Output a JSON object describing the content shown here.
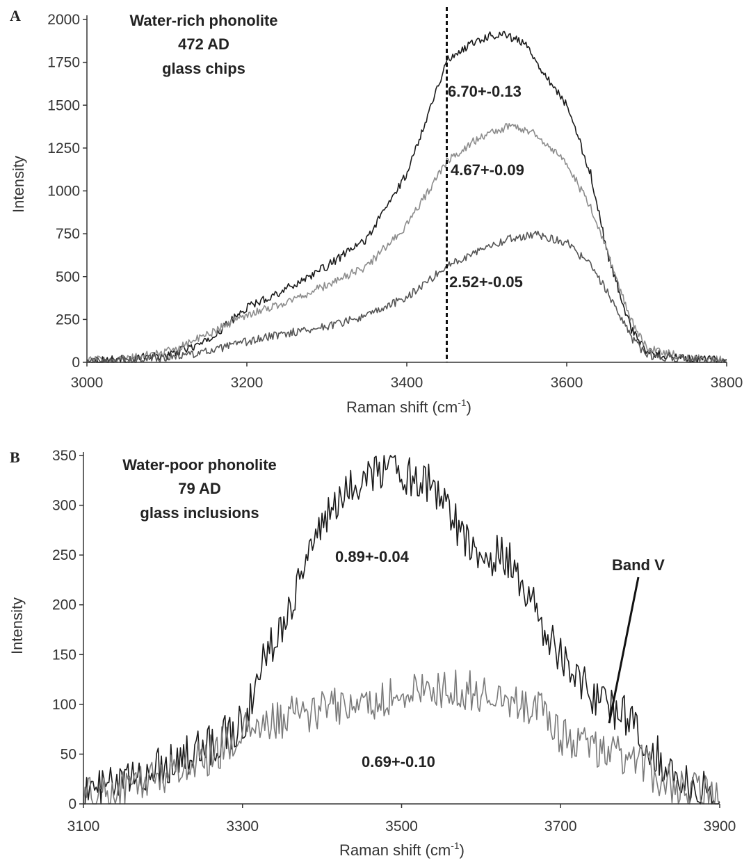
{
  "chart_data": [
    {
      "id": "A",
      "type": "line",
      "panel_label": "A",
      "xlabel": "Raman shift (cm",
      "xlabel_sup": "-1",
      "xlabel_end": ")",
      "ylabel": "Intensity",
      "xlim": [
        3000,
        3800
      ],
      "ylim": [
        0,
        2000
      ],
      "x_ticks": [
        3000,
        3200,
        3400,
        3600,
        3800
      ],
      "y_ticks": [
        0,
        250,
        500,
        750,
        1000,
        1250,
        1500,
        1750,
        2000
      ],
      "annotation_lines": [
        "Water-rich phonolite",
        "472 AD",
        "glass chips"
      ],
      "reference_line_x": 3450,
      "series": [
        {
          "label": "6.70+-0.13",
          "color": "#1a1a1a",
          "points": [
            [
              3000,
              10
            ],
            [
              3050,
              20
            ],
            [
              3100,
              40
            ],
            [
              3150,
              120
            ],
            [
              3200,
              320
            ],
            [
              3250,
              430
            ],
            [
              3300,
              560
            ],
            [
              3350,
              720
            ],
            [
              3400,
              1100
            ],
            [
              3450,
              1760
            ],
            [
              3480,
              1860
            ],
            [
              3500,
              1900
            ],
            [
              3520,
              1920
            ],
            [
              3550,
              1850
            ],
            [
              3570,
              1700
            ],
            [
              3600,
              1500
            ],
            [
              3630,
              1100
            ],
            [
              3650,
              650
            ],
            [
              3680,
              200
            ],
            [
              3700,
              60
            ],
            [
              3750,
              20
            ],
            [
              3800,
              10
            ]
          ]
        },
        {
          "label": "4.67+-0.09",
          "color": "#8c8c8c",
          "points": [
            [
              3000,
              10
            ],
            [
              3050,
              20
            ],
            [
              3100,
              60
            ],
            [
              3150,
              160
            ],
            [
              3200,
              280
            ],
            [
              3250,
              350
            ],
            [
              3300,
              450
            ],
            [
              3350,
              560
            ],
            [
              3400,
              800
            ],
            [
              3450,
              1170
            ],
            [
              3480,
              1280
            ],
            [
              3500,
              1330
            ],
            [
              3530,
              1380
            ],
            [
              3560,
              1340
            ],
            [
              3600,
              1160
            ],
            [
              3630,
              900
            ],
            [
              3650,
              650
            ],
            [
              3680,
              250
            ],
            [
              3700,
              80
            ],
            [
              3750,
              30
            ],
            [
              3800,
              10
            ]
          ]
        },
        {
          "label": "2.52+-0.05",
          "color": "#555555",
          "points": [
            [
              3000,
              5
            ],
            [
              3050,
              10
            ],
            [
              3100,
              30
            ],
            [
              3150,
              60
            ],
            [
              3200,
              120
            ],
            [
              3250,
              170
            ],
            [
              3300,
              210
            ],
            [
              3350,
              270
            ],
            [
              3400,
              380
            ],
            [
              3450,
              560
            ],
            [
              3500,
              680
            ],
            [
              3530,
              720
            ],
            [
              3560,
              750
            ],
            [
              3600,
              700
            ],
            [
              3630,
              560
            ],
            [
              3650,
              420
            ],
            [
              3680,
              150
            ],
            [
              3700,
              40
            ],
            [
              3750,
              15
            ],
            [
              3800,
              5
            ]
          ]
        }
      ]
    },
    {
      "id": "B",
      "type": "line",
      "panel_label": "B",
      "xlabel": "Raman shift (cm",
      "xlabel_sup": "-1",
      "xlabel_end": ")",
      "ylabel": "Intensity",
      "xlim": [
        3100,
        3900
      ],
      "ylim": [
        0,
        350
      ],
      "x_ticks": [
        3100,
        3300,
        3500,
        3700,
        3900
      ],
      "y_ticks": [
        0,
        50,
        100,
        150,
        200,
        250,
        300,
        350
      ],
      "annotation_lines": [
        "Water-poor phonolite",
        "79 AD",
        "glass inclusions"
      ],
      "band_label": "Band V",
      "series": [
        {
          "label": "0.89+-0.04",
          "color": "#1a1a1a",
          "points": [
            [
              3100,
              10
            ],
            [
              3150,
              20
            ],
            [
              3200,
              40
            ],
            [
              3250,
              55
            ],
            [
              3300,
              80
            ],
            [
              3330,
              150
            ],
            [
              3360,
              200
            ],
            [
              3390,
              270
            ],
            [
              3420,
              300
            ],
            [
              3450,
              330
            ],
            [
              3480,
              340
            ],
            [
              3510,
              330
            ],
            [
              3540,
              320
            ],
            [
              3570,
              280
            ],
            [
              3600,
              250
            ],
            [
              3630,
              250
            ],
            [
              3660,
              210
            ],
            [
              3690,
              160
            ],
            [
              3720,
              130
            ],
            [
              3750,
              100
            ],
            [
              3780,
              90
            ],
            [
              3810,
              60
            ],
            [
              3840,
              30
            ],
            [
              3870,
              15
            ],
            [
              3900,
              5
            ]
          ]
        },
        {
          "label": "0.69+-0.10",
          "color": "#7a7a7a",
          "points": [
            [
              3100,
              5
            ],
            [
              3150,
              15
            ],
            [
              3200,
              30
            ],
            [
              3250,
              45
            ],
            [
              3300,
              70
            ],
            [
              3350,
              85
            ],
            [
              3400,
              95
            ],
            [
              3450,
              100
            ],
            [
              3500,
              110
            ],
            [
              3550,
              115
            ],
            [
              3600,
              112
            ],
            [
              3650,
              105
            ],
            [
              3680,
              90
            ],
            [
              3700,
              70
            ],
            [
              3750,
              55
            ],
            [
              3800,
              40
            ],
            [
              3850,
              15
            ],
            [
              3900,
              5
            ]
          ]
        }
      ]
    }
  ]
}
